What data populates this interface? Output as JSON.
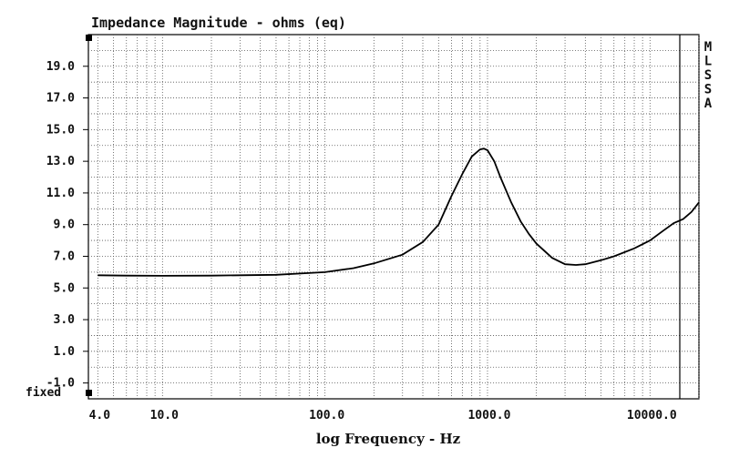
{
  "chart_data": {
    "type": "line",
    "title": "Impedance Magnitude - ohms (eq)",
    "xlabel": "log Frequency - Hz",
    "ylabel": "",
    "x_scale": "log",
    "xlim": [
      3.5,
      20000
    ],
    "ylim": [
      -2.0,
      21.0
    ],
    "grid": true,
    "y_ticks": [
      "19.0",
      "17.0",
      "15.0",
      "13.0",
      "11.0",
      "9.0",
      "7.0",
      "5.0",
      "3.0",
      "1.0",
      "-1.0"
    ],
    "y_tick_values": [
      19,
      17,
      15,
      13,
      11,
      9,
      7,
      5,
      3,
      1,
      -1
    ],
    "y_bottom_label": "fixed",
    "x_ticks": [
      "4.0",
      "10.0",
      "100.0",
      "1000.0",
      "10000.0"
    ],
    "x_tick_values": [
      4,
      10,
      100,
      1000,
      10000
    ],
    "side_label": [
      "M",
      "L",
      "S",
      "S",
      "A"
    ],
    "series": [
      {
        "x": [
          4,
          6,
          10,
          20,
          50,
          100,
          150,
          200,
          300,
          400,
          500,
          600,
          700,
          800,
          900,
          950,
          1000,
          1100,
          1200,
          1400,
          1600,
          1800,
          2000,
          2500,
          3000,
          3500,
          4000,
          5000,
          6000,
          8000,
          10000,
          12000,
          14000,
          16000,
          18000,
          20000
        ],
        "y": [
          5.8,
          5.78,
          5.77,
          5.78,
          5.83,
          6.0,
          6.25,
          6.55,
          7.1,
          7.9,
          9.0,
          10.8,
          12.2,
          13.3,
          13.75,
          13.8,
          13.7,
          13.0,
          12.0,
          10.4,
          9.2,
          8.4,
          7.8,
          6.9,
          6.5,
          6.45,
          6.5,
          6.75,
          7.0,
          7.5,
          8.0,
          8.6,
          9.1,
          9.35,
          9.8,
          10.4
        ]
      }
    ]
  }
}
